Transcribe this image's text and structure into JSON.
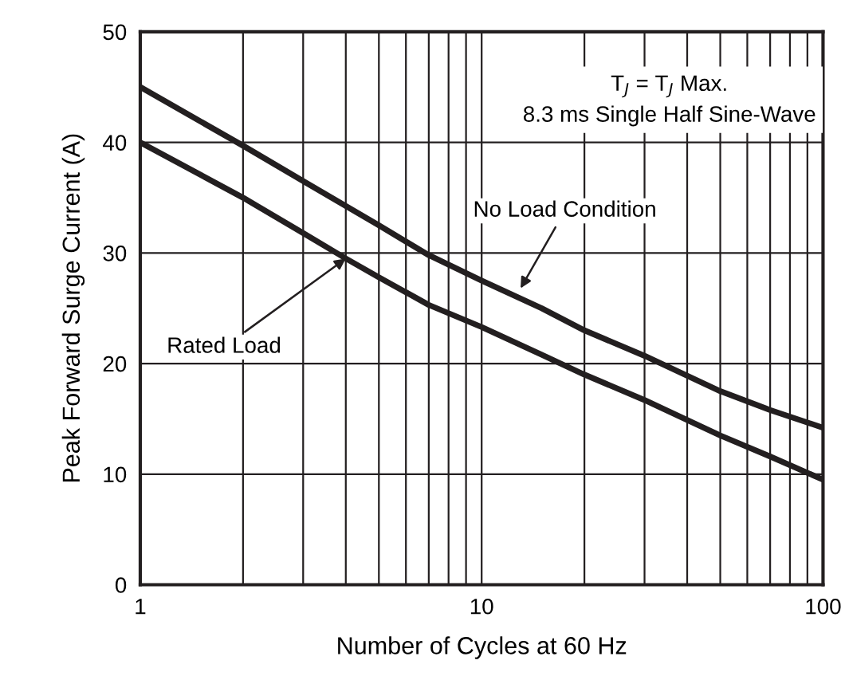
{
  "chart_data": {
    "type": "line",
    "xlabel": "Number of Cycles at 60 Hz",
    "ylabel": "Peak Forward Surge Current (A)",
    "log": "x",
    "grid": true,
    "legend": false,
    "xlim": [
      1,
      100
    ],
    "xticks": [
      1,
      10,
      100
    ],
    "ylim": [
      0,
      50
    ],
    "yticks": [
      0,
      10,
      20,
      30,
      40,
      50
    ],
    "series": [
      {
        "color": "#231f20",
        "x": [
          1,
          2,
          3,
          5,
          7,
          10,
          15,
          20,
          30,
          50,
          70,
          100
        ],
        "values": [
          45,
          39.7,
          36.5,
          32.5,
          29.8,
          27.5,
          25,
          23,
          20.7,
          17.5,
          15.8,
          14.2
        ]
      },
      {
        "color": "#231f20",
        "x": [
          1,
          2,
          3,
          4,
          5,
          7,
          10,
          15,
          20,
          30,
          50,
          70,
          100
        ],
        "values": [
          40,
          35,
          31.8,
          29.5,
          27.8,
          25.3,
          23.3,
          20.8,
          19,
          16.7,
          13.5,
          11.6,
          9.5
        ]
      }
    ],
    "annotations": [
      "T$_{J}$ = T$_{J}$ Max.",
      "8.3 ms Single Half Sine-Wave",
      {
        "text": "No Load Condition",
        "x": 13,
        "y": 26.8
      },
      {
        "text": "Rated Load",
        "x": 4,
        "y": 29.5
      }
    ]
  }
}
